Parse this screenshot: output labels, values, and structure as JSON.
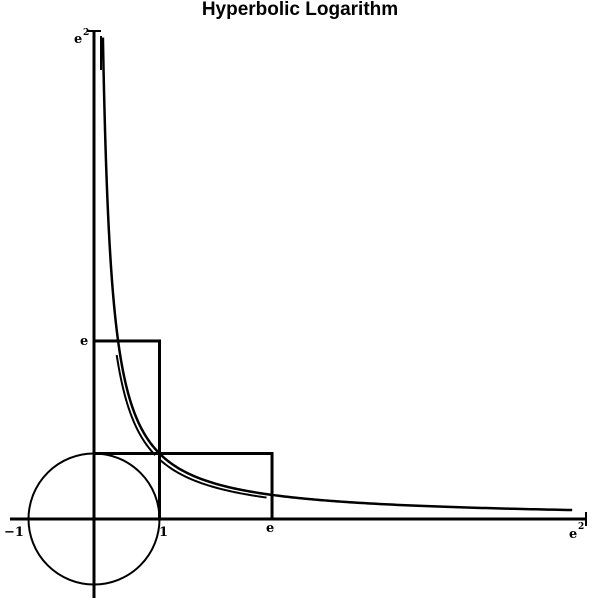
{
  "title": "Hyperbolic  Logarithm",
  "labels": {
    "x_minus_one": "−1",
    "x_one": "1",
    "x_e": "e",
    "x_e2_base": "e",
    "x_e2_exp": "2",
    "y_e": "e",
    "y_e2_base": "e",
    "y_e2_exp": "2"
  },
  "chart_data": {
    "type": "diagram",
    "curve": "y = 1/x",
    "x_range": [
      -1,
      7.389
    ],
    "y_range": [
      -1,
      7.389
    ],
    "circle": {
      "center": [
        0,
        0
      ],
      "radius": 1
    },
    "rectangles": [
      {
        "x": [
          0,
          1
        ],
        "y": [
          1,
          2.718
        ]
      },
      {
        "x": [
          1,
          2.718
        ],
        "y": [
          0,
          1
        ]
      }
    ],
    "colors": {
      "stroke": "#000000",
      "background": "#ffffff"
    }
  }
}
